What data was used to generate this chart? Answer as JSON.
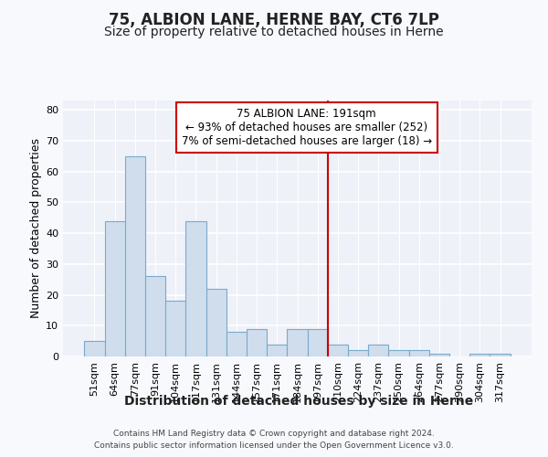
{
  "title": "75, ALBION LANE, HERNE BAY, CT6 7LP",
  "subtitle": "Size of property relative to detached houses in Herne",
  "xlabel": "Distribution of detached houses by size in Herne",
  "ylabel": "Number of detached properties",
  "bar_labels": [
    "51sqm",
    "64sqm",
    "77sqm",
    "91sqm",
    "104sqm",
    "117sqm",
    "131sqm",
    "144sqm",
    "157sqm",
    "171sqm",
    "184sqm",
    "197sqm",
    "210sqm",
    "224sqm",
    "237sqm",
    "250sqm",
    "264sqm",
    "277sqm",
    "290sqm",
    "304sqm",
    "317sqm"
  ],
  "bar_values": [
    5,
    44,
    65,
    26,
    18,
    44,
    22,
    8,
    9,
    4,
    9,
    9,
    4,
    2,
    4,
    2,
    2,
    1,
    0,
    1,
    1
  ],
  "bar_color": "#cfdded",
  "bar_edgecolor": "#7aaacb",
  "vline_x": 11.5,
  "vline_color": "#cc0000",
  "annotation_text_line1": "75 ALBION LANE: 191sqm",
  "annotation_text_line2": "← 93% of detached houses are smaller (252)",
  "annotation_text_line3": "7% of semi-detached houses are larger (18) →",
  "ylim": [
    0,
    83
  ],
  "yticks": [
    0,
    10,
    20,
    30,
    40,
    50,
    60,
    70,
    80
  ],
  "fig_facecolor": "#f8f9fd",
  "plot_facecolor": "#eef1f8",
  "grid_color": "#ffffff",
  "title_fontsize": 12,
  "subtitle_fontsize": 10,
  "xlabel_fontsize": 10,
  "ylabel_fontsize": 9,
  "tick_fontsize": 8,
  "annot_fontsize": 8.5,
  "footer_line1": "Contains HM Land Registry data © Crown copyright and database right 2024.",
  "footer_line2": "Contains public sector information licensed under the Open Government Licence v3.0."
}
